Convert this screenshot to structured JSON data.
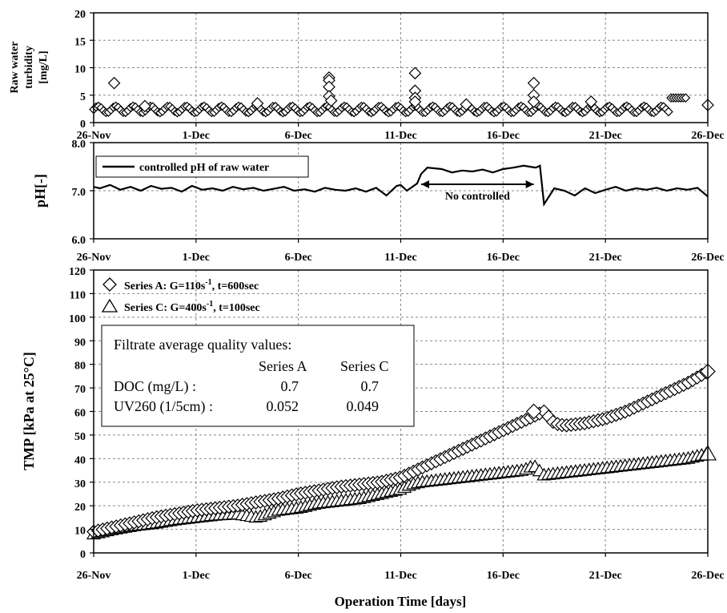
{
  "x_axis": {
    "label": "Operation Time [days]",
    "ticks": [
      "26-Nov",
      "1-Dec",
      "6-Dec",
      "11-Dec",
      "16-Dec",
      "21-Dec",
      "26-Dec"
    ],
    "ticks_days": [
      0,
      5,
      10,
      15,
      20,
      25,
      30
    ],
    "range_days": [
      0,
      30
    ]
  },
  "chart_data": [
    {
      "type": "scatter",
      "title": "",
      "ylabel": "Raw water turbidity [mg/L]",
      "ylabel_lines": [
        "Raw water",
        "turbidity",
        "[mg/L]"
      ],
      "xlabel": "",
      "ylim": [
        0,
        20
      ],
      "yticks": [
        "0",
        "5",
        "10",
        "15",
        "20"
      ],
      "grid": true,
      "marker": "diamond",
      "x": [
        1.0,
        2.5,
        8.0,
        11.5,
        11.5,
        11.5,
        11.5,
        11.6,
        15.7,
        15.7,
        15.7,
        15.7,
        18.2,
        21.5,
        21.5,
        21.5,
        24.3,
        30.0
      ],
      "y": [
        7.2,
        3.0,
        3.5,
        8.2,
        7.7,
        6.5,
        4.8,
        4.0,
        9.0,
        5.8,
        4.5,
        3.8,
        3.3,
        7.2,
        5.0,
        3.8,
        3.8,
        3.2
      ],
      "baseline_band": {
        "x": [
          0,
          29
        ],
        "y_low": 1.8,
        "y_high": 3.0,
        "peak_x": 28.7,
        "peak_y": 4.5
      }
    },
    {
      "type": "line",
      "title": "",
      "ylabel": "pH[-]",
      "xlabel": "",
      "ylim": [
        6.0,
        8.0
      ],
      "yticks": [
        "6.0",
        "7.0",
        "8.0"
      ],
      "grid": true,
      "legend": {
        "placement": "top-left",
        "entries": [
          "controlled pH of raw water"
        ]
      },
      "annotation": "No controlled",
      "annotation_range_days": [
        16.0,
        21.5
      ],
      "series": [
        {
          "name": "controlled pH of raw water",
          "x": [
            0.0,
            0.3,
            0.8,
            1.3,
            1.8,
            2.3,
            2.8,
            3.3,
            3.8,
            4.3,
            4.8,
            5.3,
            5.8,
            6.3,
            6.8,
            7.3,
            7.8,
            8.3,
            8.8,
            9.3,
            9.8,
            10.3,
            10.8,
            11.3,
            11.8,
            12.3,
            12.8,
            13.3,
            13.8,
            14.3,
            14.8,
            15.0,
            15.3,
            15.8,
            16.0,
            16.3,
            17.0,
            17.5,
            18.0,
            18.5,
            19.0,
            19.5,
            20.0,
            20.5,
            21.0,
            21.3,
            21.6,
            21.8,
            22.0,
            22.5,
            23.0,
            23.5,
            24.0,
            24.5,
            25.0,
            25.5,
            26.0,
            26.5,
            27.0,
            27.5,
            28.0,
            28.5,
            29.0,
            29.5,
            30.0
          ],
          "y": [
            7.08,
            7.05,
            7.12,
            7.02,
            7.08,
            7.0,
            7.1,
            7.04,
            7.06,
            6.98,
            7.1,
            7.02,
            7.05,
            7.0,
            7.08,
            7.03,
            7.06,
            7.0,
            7.04,
            7.08,
            7.0,
            7.03,
            6.98,
            7.06,
            7.02,
            7.0,
            7.05,
            6.98,
            7.06,
            6.9,
            7.1,
            7.12,
            7.0,
            7.15,
            7.35,
            7.48,
            7.45,
            7.38,
            7.42,
            7.4,
            7.44,
            7.38,
            7.45,
            7.48,
            7.52,
            7.5,
            7.48,
            7.52,
            6.72,
            7.05,
            7.0,
            6.9,
            7.05,
            6.95,
            7.02,
            7.08,
            7.0,
            7.05,
            7.02,
            7.06,
            7.0,
            7.05,
            7.02,
            7.06,
            6.88
          ]
        }
      ]
    },
    {
      "type": "scatter",
      "title": "",
      "ylabel": "TMP [kPa at 25°C]",
      "xlabel": "Operation Time [days]",
      "ylim": [
        0,
        120
      ],
      "yticks": [
        "0",
        "10",
        "20",
        "30",
        "40",
        "50",
        "60",
        "70",
        "80",
        "90",
        "100",
        "110",
        "120"
      ],
      "grid": true,
      "legend": {
        "placement": "top-left",
        "entries": [
          "Series A: G=110s-1, t=600sec",
          "Series C: G=400s-1, t=100sec"
        ]
      },
      "legend_text": [
        {
          "prefix": "Series A:  G=110s",
          "sup": "-1",
          "suffix": ", t=600sec"
        },
        {
          "prefix": "Series C:  G=400s",
          "sup": "-1",
          "suffix": ", t=100sec"
        }
      ],
      "series": [
        {
          "name": "Series A:  G=110s-1, t=600sec",
          "marker": "diamond",
          "x": [
            0.0,
            1.0,
            2.0,
            3.0,
            4.0,
            5.0,
            6.0,
            7.0,
            8.0,
            9.0,
            10.0,
            11.0,
            12.0,
            13.0,
            14.0,
            15.0,
            15.5,
            16.0,
            17.0,
            18.0,
            19.0,
            20.0,
            21.0,
            21.5,
            22.0,
            22.5,
            23.0,
            24.0,
            25.0,
            26.0,
            27.0,
            28.0,
            29.0,
            30.0
          ],
          "y": [
            9,
            11,
            13,
            15,
            16.5,
            18,
            19,
            20,
            21.5,
            23,
            25,
            26.5,
            28,
            29,
            30,
            32,
            34,
            36,
            40,
            44,
            48,
            52,
            56,
            58,
            60,
            55,
            54,
            55,
            57,
            60,
            64,
            68,
            72,
            77
          ]
        },
        {
          "name": "Series C:  G=400s-1, t=100sec",
          "marker": "triangle",
          "x": [
            0.0,
            1.0,
            2.0,
            3.0,
            4.0,
            5.0,
            6.0,
            7.0,
            8.0,
            9.0,
            10.0,
            10.5,
            11.0,
            12.0,
            13.0,
            14.0,
            15.0,
            15.5,
            16.0,
            17.0,
            18.0,
            19.0,
            20.0,
            21.0,
            21.5,
            22.0,
            23.0,
            24.0,
            25.0,
            26.0,
            27.0,
            28.0,
            29.0,
            30.0
          ],
          "y": [
            8,
            10,
            11.5,
            12.5,
            14,
            15,
            16,
            16.5,
            15,
            18,
            19,
            20,
            21,
            22,
            23,
            25,
            27,
            29,
            30,
            31,
            32,
            33,
            34,
            35,
            37,
            33,
            34,
            35,
            36,
            37,
            38,
            39,
            40,
            42
          ]
        }
      ],
      "info_box": {
        "title": "Filtrate average quality values:",
        "headers": [
          "Series A",
          "Series C"
        ],
        "rows": [
          {
            "label": "DOC (mg/L) :",
            "a": "0.7",
            "c": "0.7"
          },
          {
            "label": "UV260 (1/5cm) :",
            "a": "0.052",
            "c": "0.049"
          }
        ]
      }
    }
  ]
}
